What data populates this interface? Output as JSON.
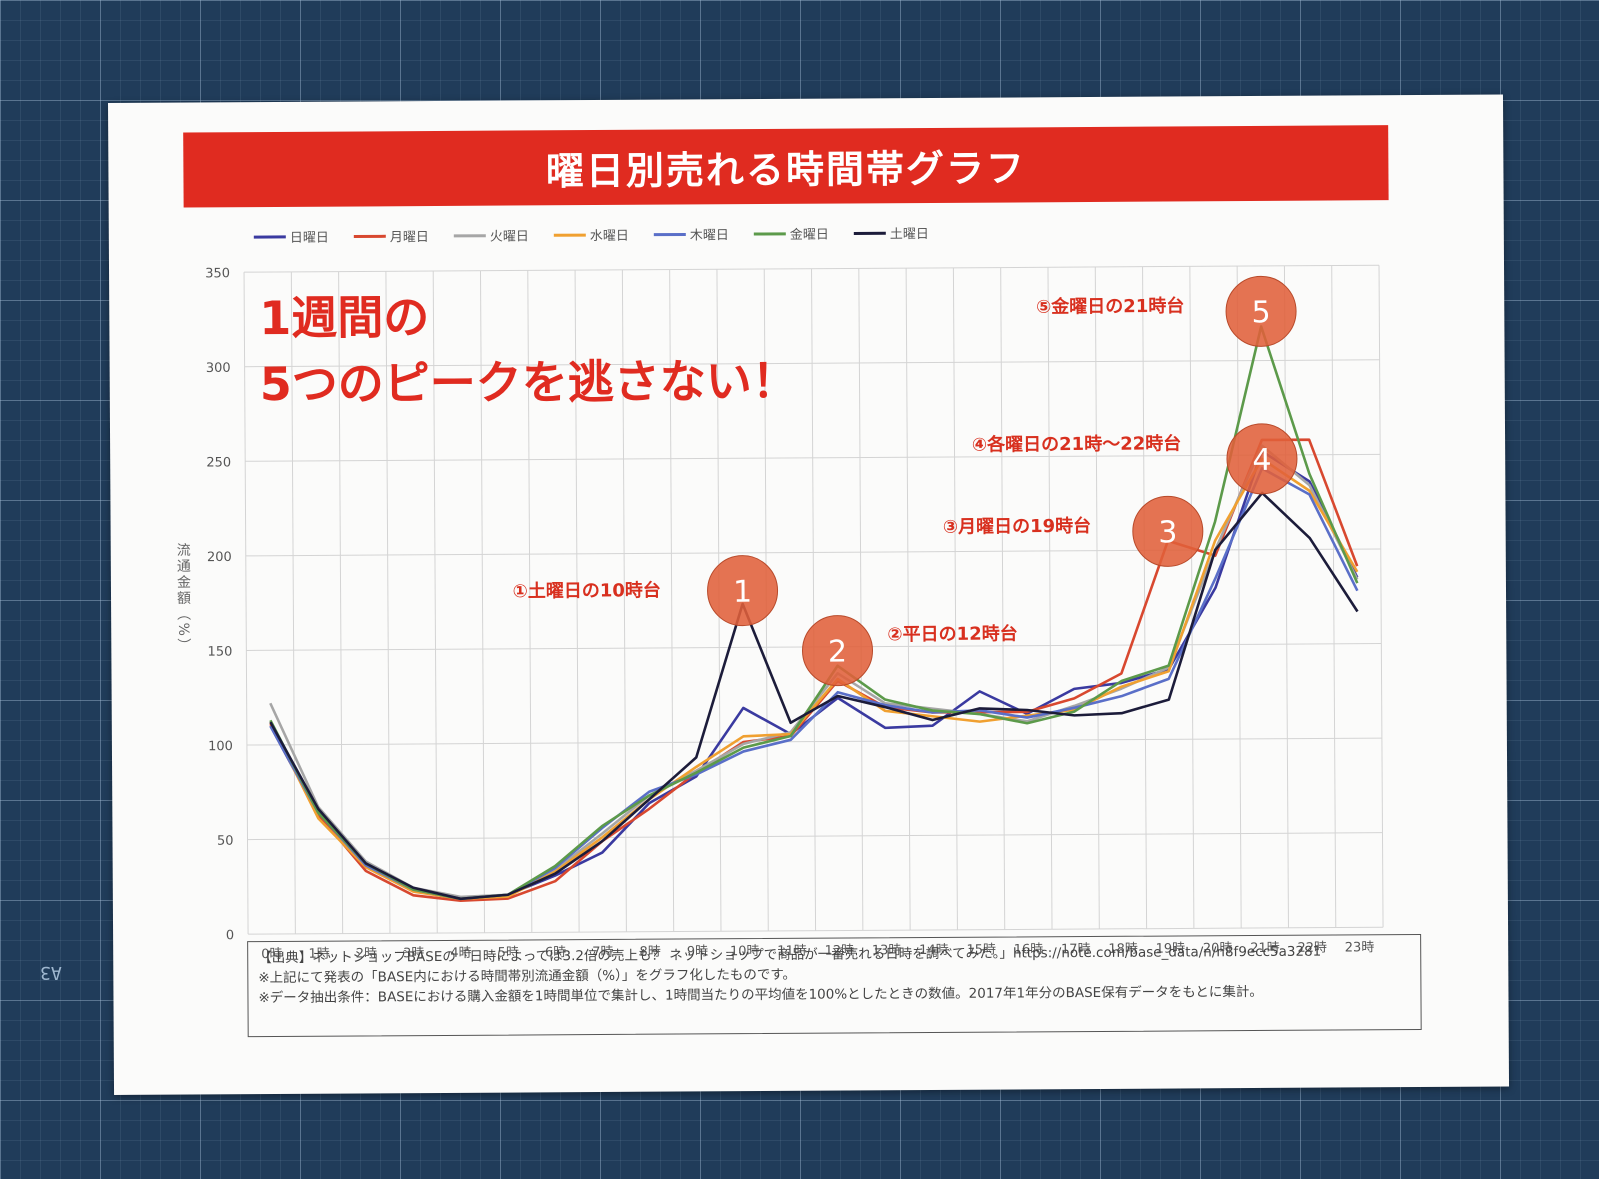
{
  "banner": {
    "title": "曜日別売れる時間帯グラフ"
  },
  "headline": {
    "line1": "1週間の",
    "line2": "5つのピークを逃さない！"
  },
  "source": {
    "line1": "【出典】ネットショップBASEの「日時によっては3.2倍の売上も？ ネットショップで商品が一番売れる日時を調べてみた。」https://note.com/base_data/n/n8f9ecc5a3281",
    "line2": "※上記にて発表の「BASE内における時間帯別流通金額（%）」をグラフ化したものです。",
    "line3": "※上記にて発表の「BASE内における時間帯別流通金額（%）」をグラフ化したものです。",
    "line4": "※データ抽出条件：BASEにおける購入金額を1時間単位で集計し、1時間当たりの平均値を100%としたときの数値。2017年1年分のBASE保有データをもとに集計。"
  },
  "colors": {
    "accent": "#e02b20",
    "callout": "#e0603a"
  },
  "chart_data": {
    "type": "line",
    "title": "曜日別売れる時間帯グラフ",
    "ylabel": "流通金額（%）",
    "xlabel": "",
    "ylim": [
      0,
      350
    ],
    "yticks": [
      0,
      50,
      100,
      150,
      200,
      250,
      300,
      350
    ],
    "grid": true,
    "legend_position": "top",
    "categories": [
      "0時",
      "1時",
      "2時",
      "3時",
      "4時",
      "5時",
      "6時",
      "7時",
      "8時",
      "9時",
      "10時",
      "11時",
      "12時",
      "13時",
      "14時",
      "15時",
      "16時",
      "17時",
      "18時",
      "19時",
      "20時",
      "21時",
      "22時",
      "23時"
    ],
    "series": [
      {
        "name": "日曜日",
        "color": "#3a3aa0",
        "values": [
          110,
          63,
          37,
          23,
          18,
          20,
          30,
          42,
          68,
          82,
          118,
          104,
          123,
          107,
          108,
          126,
          114,
          127,
          130,
          137,
          180,
          252,
          236,
          185
        ]
      },
      {
        "name": "月曜日",
        "color": "#d8482f",
        "values": [
          111,
          63,
          33,
          20,
          17,
          18,
          27,
          48,
          65,
          84,
          100,
          103,
          132,
          118,
          115,
          115,
          115,
          122,
          135,
          205,
          197,
          258,
          258,
          191
        ]
      },
      {
        "name": "火曜日",
        "color": "#a6a6a6",
        "values": [
          122,
          67,
          38,
          24,
          19,
          20,
          33,
          52,
          72,
          85,
          99,
          105,
          136,
          120,
          117,
          114,
          110,
          118,
          127,
          138,
          200,
          255,
          234,
          184
        ]
      },
      {
        "name": "水曜日",
        "color": "#f0a030",
        "values": [
          112,
          61,
          35,
          22,
          18,
          19,
          32,
          50,
          70,
          87,
          103,
          104,
          133,
          116,
          113,
          110,
          113,
          116,
          128,
          136,
          205,
          248,
          231,
          188
        ]
      },
      {
        "name": "木曜日",
        "color": "#5a6fc8",
        "values": [
          110,
          64,
          36,
          23,
          18,
          20,
          34,
          55,
          74,
          83,
          95,
          101,
          126,
          119,
          115,
          116,
          112,
          117,
          123,
          132,
          185,
          243,
          229,
          178
        ]
      },
      {
        "name": "金曜日",
        "color": "#5c9a4a",
        "values": [
          113,
          64,
          37,
          23,
          18,
          20,
          35,
          56,
          72,
          84,
          97,
          103,
          140,
          122,
          116,
          114,
          109,
          115,
          131,
          139,
          215,
          318,
          240,
          182
        ]
      },
      {
        "name": "土曜日",
        "color": "#1c1c3a",
        "values": [
          112,
          66,
          37,
          24,
          18,
          20,
          31,
          48,
          70,
          92,
          173,
          110,
          124,
          118,
          111,
          117,
          116,
          113,
          114,
          121,
          200,
          230,
          206,
          167
        ]
      }
    ],
    "annotations": [
      {
        "number": "1",
        "label": "①土曜日の10時台",
        "hour": 10,
        "value": 180
      },
      {
        "number": "2",
        "label": "②平日の12時台",
        "hour": 12,
        "value": 148
      },
      {
        "number": "3",
        "label": "③月曜日の19時台",
        "hour": 19,
        "value": 210
      },
      {
        "number": "4",
        "label": "④各曜日の21時〜22時台",
        "hour": 21,
        "value": 248
      },
      {
        "number": "5",
        "label": "⑤金曜日の21時台",
        "hour": 21,
        "value": 326
      }
    ]
  }
}
